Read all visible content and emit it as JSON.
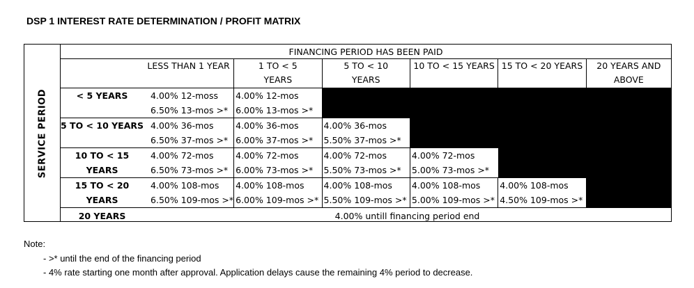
{
  "title": "DSP 1 INTEREST RATE DETERMINATION / PROFIT MATRIX",
  "service_period_label": "SERVICE PERIOD",
  "financing_header": "FINANCING PERIOD HAS BEEN PAID",
  "columns": [
    {
      "line1": "LESS THAN 1 YEAR",
      "line2": ""
    },
    {
      "line1": "1 TO < 5",
      "line2": "YEARS"
    },
    {
      "line1": "5 TO < 10",
      "line2": "YEARS"
    },
    {
      "line1": "10 TO < 15 YEARS",
      "line2": ""
    },
    {
      "line1": "15 TO < 20 YEARS",
      "line2": ""
    },
    {
      "line1": "20 YEARS AND",
      "line2": "ABOVE"
    }
  ],
  "rows": [
    {
      "label1": "< 5 YEARS",
      "label2": "",
      "cells": [
        {
          "a": "4.00% 12-moss",
          "b": "6.50% 13-mos >*"
        },
        {
          "a": "4.00% 12-mos",
          "b": "6.00% 13-mos >*"
        }
      ]
    },
    {
      "label1": "5 TO < 10 YEARS",
      "label2": "",
      "cells": [
        {
          "a": "4.00% 36-mos",
          "b": "6.50% 37-mos >*"
        },
        {
          "a": "4.00% 36-mos",
          "b": "6.00% 37-mos >*"
        },
        {
          "a": "4.00% 36-mos",
          "b": "5.50% 37-mos >*"
        }
      ]
    },
    {
      "label1": "10 TO < 15",
      "label2": "YEARS",
      "cells": [
        {
          "a": "4.00% 72-mos",
          "b": "6.50% 73-mos >*"
        },
        {
          "a": "4.00% 72-mos",
          "b": "6.00% 73-mos >*"
        },
        {
          "a": "4.00% 72-mos",
          "b": "5.50% 73-mos >*"
        },
        {
          "a": "4.00% 72-mos",
          "b": "5.00% 73-mos >*"
        }
      ]
    },
    {
      "label1": "15 TO < 20",
      "label2": "YEARS",
      "cells": [
        {
          "a": "4.00% 108-mos",
          "b": "6.50% 109-mos >*"
        },
        {
          "a": "4.00% 108-mos",
          "b": "6.00% 109-mos >*"
        },
        {
          "a": "4.00% 108-mos",
          "b": "5.50% 109-mos >*"
        },
        {
          "a": "4.00% 108-mos",
          "b": "5.00% 109-mos >*"
        },
        {
          "a": "4.00% 108-mos",
          "b": "4.50% 109-mos >*"
        }
      ]
    }
  ],
  "last_row": {
    "label": "20 YEARS",
    "text": "4.00% untill financing period end"
  },
  "note": {
    "heading": "Note:",
    "lines": [
      "- >* until the end of the financing period",
      "- 4% rate starting one month after approval. Application delays cause the remaining 4% period to decrease."
    ]
  }
}
